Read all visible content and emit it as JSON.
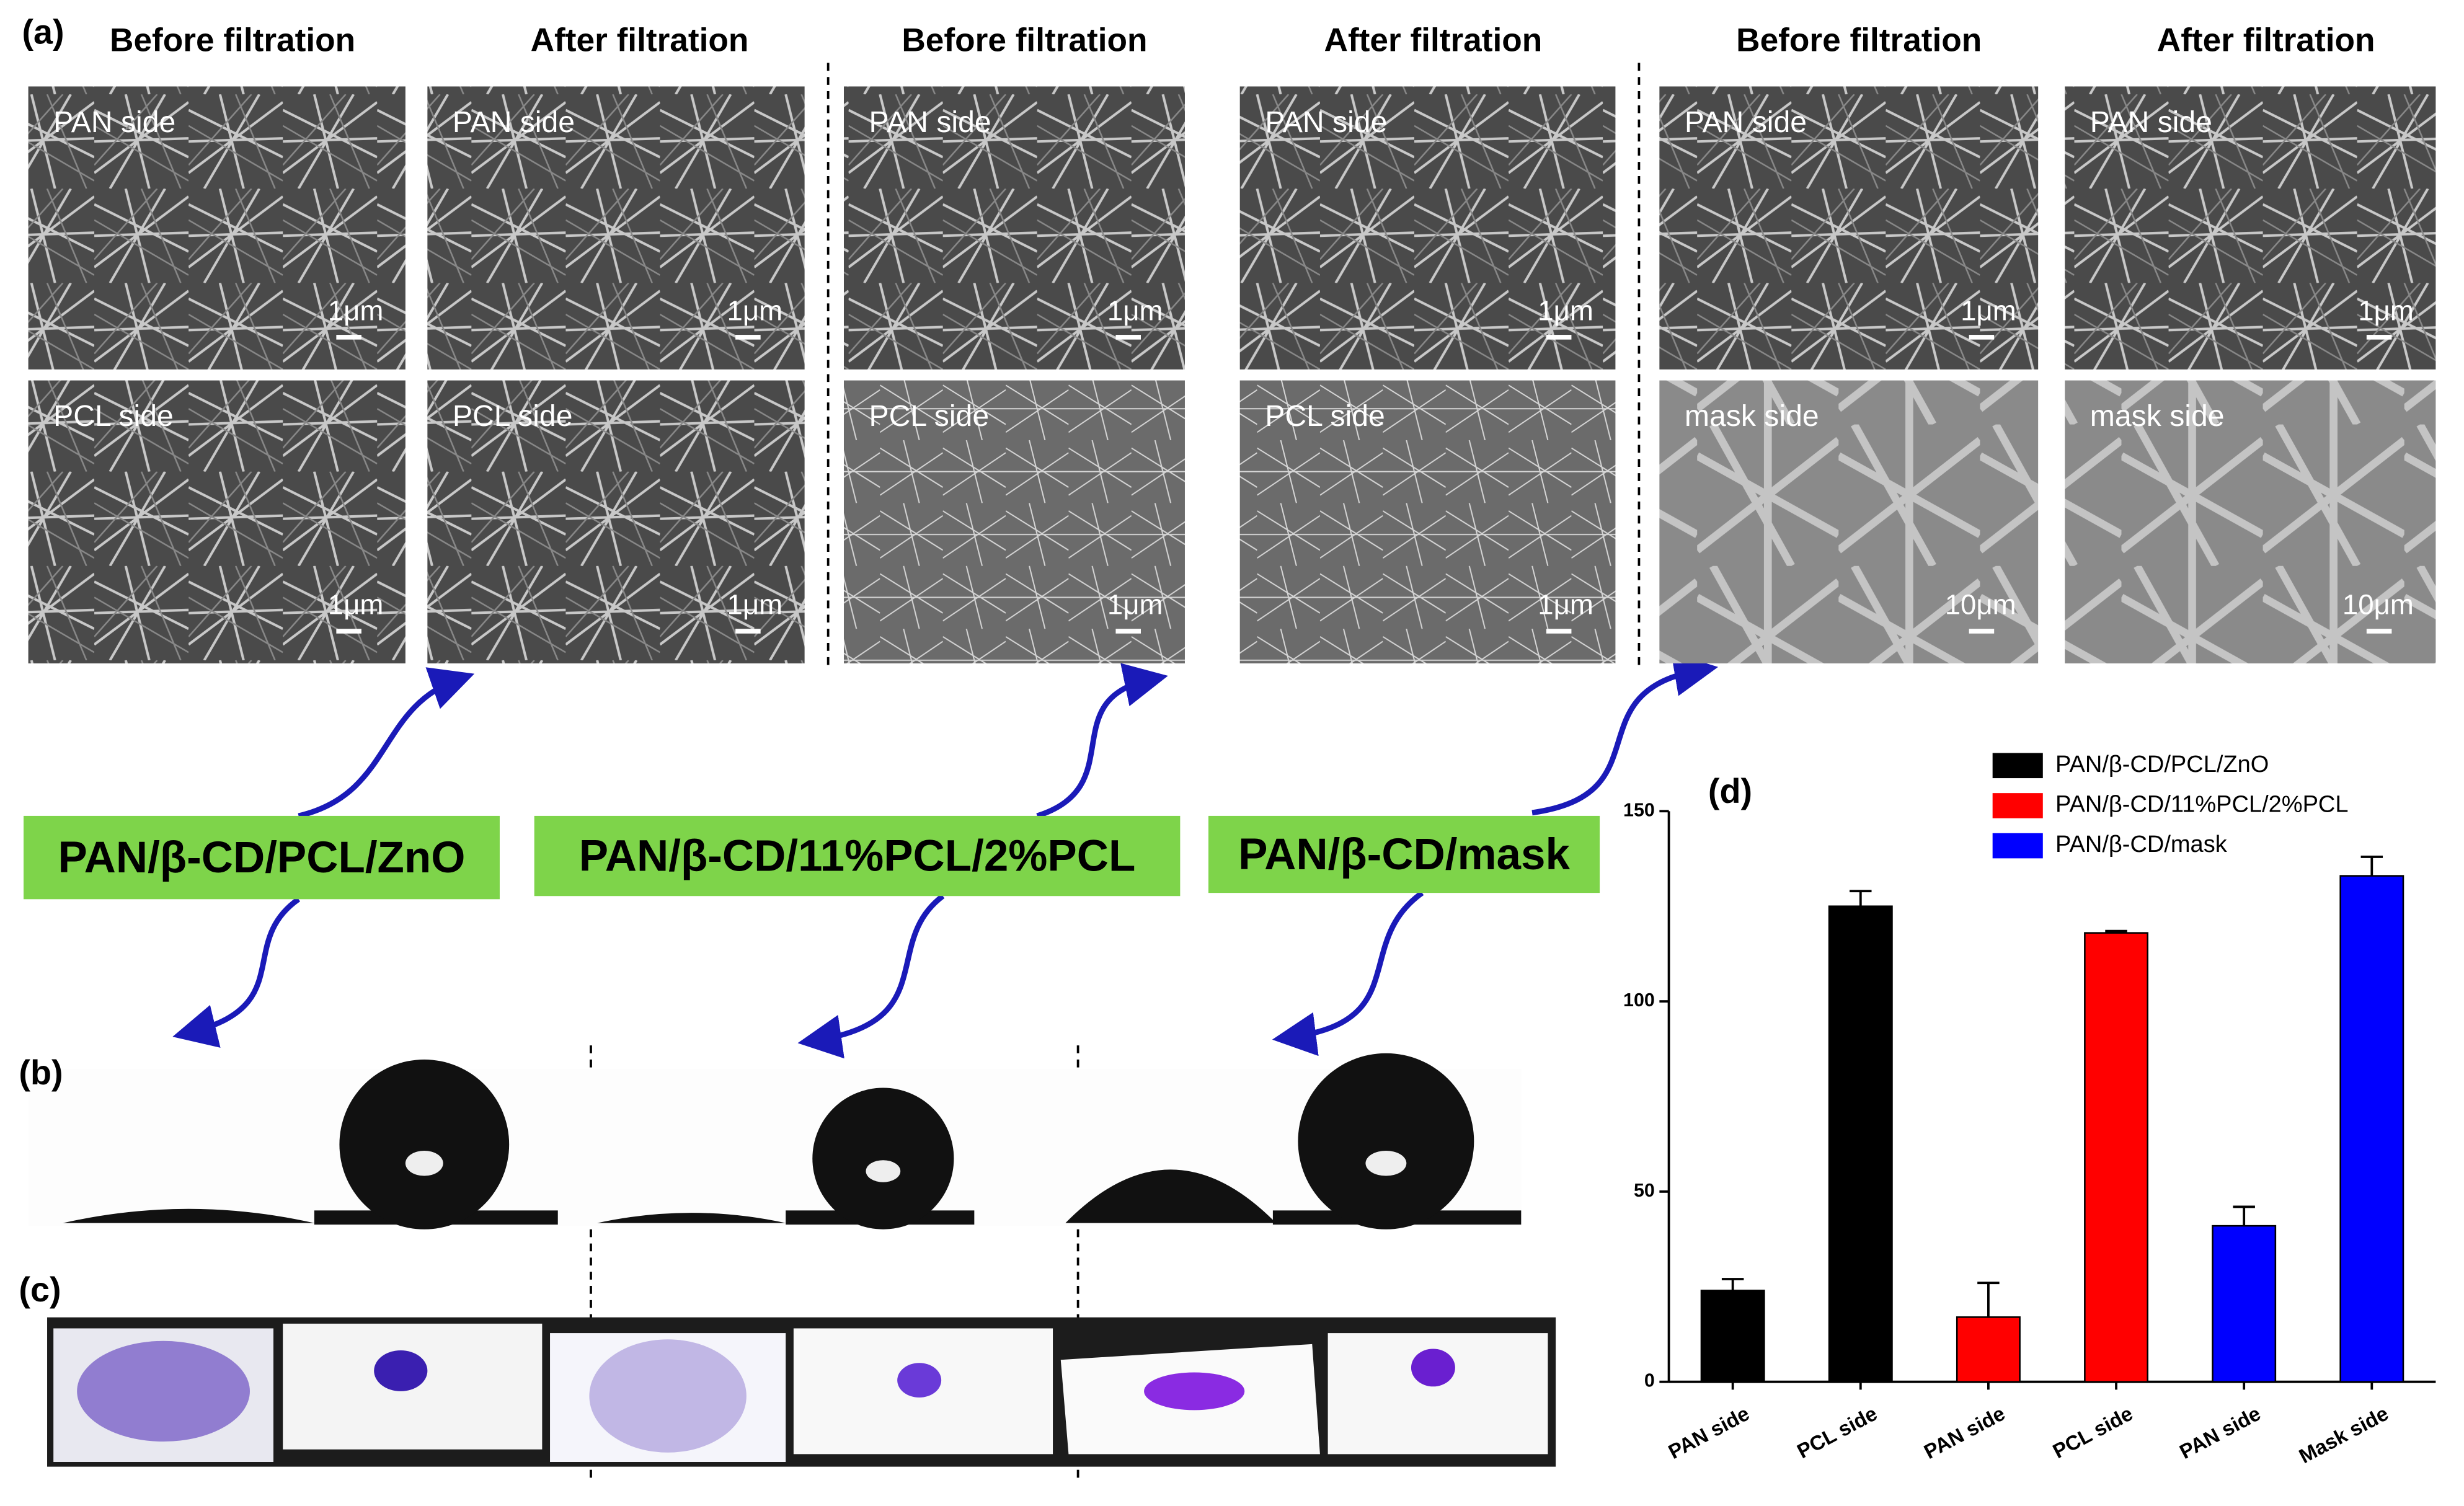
{
  "panel_labels": [
    "(a)",
    "(b)",
    "(c)",
    "(d)"
  ],
  "sem_headers": [
    "Before filtration",
    "After filtration",
    "Before filtration",
    "After filtration",
    "Before filtration",
    "After filtration"
  ],
  "sem_images": [
    {
      "side": "PAN side",
      "scale": "1μm"
    },
    {
      "side": "PAN side",
      "scale": "1μm"
    },
    {
      "side": "PAN side",
      "scale": "1μm"
    },
    {
      "side": "PAN side",
      "scale": "1μm"
    },
    {
      "side": "PAN side",
      "scale": "1μm"
    },
    {
      "side": "PAN side",
      "scale": "1μm"
    },
    {
      "side": "PCL side",
      "scale": "1μm"
    },
    {
      "side": "PCL side",
      "scale": "1μm"
    },
    {
      "side": "PCL side",
      "scale": "1μm"
    },
    {
      "side": "PCL side",
      "scale": "1μm"
    },
    {
      "side": "mask side",
      "scale": "10μm"
    },
    {
      "side": "mask side",
      "scale": "10μm"
    }
  ],
  "materials": [
    "PAN/β-CD/PCL/ZnO",
    "PAN/β-CD/11%PCL/2%PCL",
    "PAN/β-CD/mask"
  ],
  "chart_data": {
    "type": "bar",
    "categories": [
      "PAN side",
      "PCL side",
      "PAN side",
      "PCL side",
      "PAN side",
      "Mask side"
    ],
    "series": [
      {
        "name": "PAN/β-CD/PCL/ZnO",
        "color": "#000000",
        "values": [
          24,
          125,
          null,
          null,
          null,
          null
        ],
        "errors": [
          3,
          4,
          null,
          null,
          null,
          null
        ]
      },
      {
        "name": "PAN/β-CD/11%PCL/2%PCL",
        "color": "#ff0000",
        "values": [
          null,
          null,
          17,
          118,
          null,
          null
        ],
        "errors": [
          null,
          null,
          9,
          0.5,
          null,
          null
        ]
      },
      {
        "name": "PAN/β-CD/mask",
        "color": "#0000ff",
        "values": [
          null,
          null,
          null,
          null,
          41,
          133
        ],
        "errors": [
          null,
          null,
          null,
          null,
          5,
          5
        ]
      }
    ],
    "ylim": [
      0,
      150
    ],
    "yticks": [
      0,
      50,
      100,
      150
    ]
  }
}
